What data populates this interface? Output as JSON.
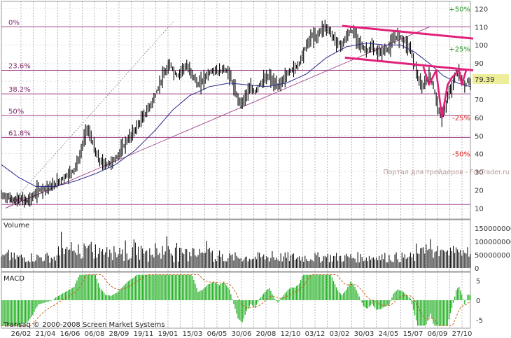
{
  "chart_data": [
    {
      "type": "line",
      "panel": "price",
      "price_axis": {
        "ticks": [
          10,
          20,
          30,
          40,
          50,
          60,
          70,
          80,
          90,
          100,
          110,
          120
        ],
        "ylim": [
          4,
          124
        ]
      },
      "price_axis_labels": [
        "10",
        "20",
        "30",
        "40",
        "50",
        "60",
        "70",
        "80",
        "90",
        "100",
        "110",
        "120"
      ],
      "last_price": 79.39,
      "last_price_label": "79.39",
      "series": [
        {
          "values": [
            [
              0,
              17
            ],
            [
              5,
              16
            ],
            [
              10,
              14
            ],
            [
              14,
              15
            ],
            [
              18,
              14
            ],
            [
              22,
              16
            ],
            [
              26,
              20
            ],
            [
              31,
              21
            ],
            [
              36,
              22
            ],
            [
              41,
              25
            ],
            [
              46,
              28
            ],
            [
              51,
              31
            ],
            [
              55,
              38
            ],
            [
              58,
              48
            ],
            [
              60,
              54
            ],
            [
              63,
              49
            ],
            [
              66,
              41
            ],
            [
              69,
              36
            ],
            [
              73,
              34
            ],
            [
              77,
              35
            ],
            [
              81,
              38
            ],
            [
              85,
              43
            ],
            [
              89,
              48
            ],
            [
              93,
              52
            ],
            [
              97,
              57
            ],
            [
              101,
              62
            ],
            [
              104,
              66
            ],
            [
              107,
              70
            ],
            [
              110,
              76
            ],
            [
              113,
              82
            ],
            [
              116,
              86
            ],
            [
              119,
              89
            ],
            [
              121,
              85
            ],
            [
              124,
              83
            ],
            [
              127,
              87
            ],
            [
              130,
              88
            ],
            [
              134,
              84
            ],
            [
              138,
              78
            ],
            [
              141,
              80
            ],
            [
              145,
              84
            ],
            [
              149,
              86
            ],
            [
              153,
              85
            ],
            [
              156,
              87
            ],
            [
              160,
              84
            ],
            [
              163,
              77
            ],
            [
              166,
              70
            ],
            [
              169,
              68
            ],
            [
              172,
              73
            ],
            [
              175,
              76
            ],
            [
              178,
              74
            ],
            [
              181,
              78
            ],
            [
              185,
              81
            ],
            [
              188,
              83
            ],
            [
              191,
              79
            ],
            [
              194,
              77
            ],
            [
              197,
              80
            ],
            [
              200,
              83
            ],
            [
              203,
              86
            ],
            [
              206,
              87
            ],
            [
              209,
              90
            ],
            [
              212,
              96
            ],
            [
              215,
              101
            ],
            [
              218,
              105
            ],
            [
              221,
              104
            ],
            [
              224,
              108
            ],
            [
              227,
              110
            ],
            [
              230,
              108
            ],
            [
              233,
              104
            ],
            [
              236,
              101
            ],
            [
              239,
              100
            ],
            [
              242,
              104
            ],
            [
              245,
              108
            ],
            [
              248,
              106
            ],
            [
              251,
              102
            ],
            [
              254,
              98
            ],
            [
              257,
              97
            ],
            [
              260,
              99
            ],
            [
              263,
              96
            ],
            [
              266,
              96
            ],
            [
              269,
              97
            ],
            [
              272,
              98
            ],
            [
              275,
              103
            ],
            [
              278,
              105
            ],
            [
              281,
              104
            ],
            [
              284,
              101
            ],
            [
              287,
              98
            ],
            [
              289,
              92
            ],
            [
              291,
              86
            ],
            [
              293,
              80
            ],
            [
              295,
              76
            ],
            [
              298,
              80
            ],
            [
              301,
              83
            ],
            [
              303,
              77
            ],
            [
              305,
              71
            ],
            [
              307,
              64
            ],
            [
              309,
              60
            ],
            [
              311,
              64
            ],
            [
              313,
              70
            ],
            [
              315,
              75
            ],
            [
              317,
              79
            ],
            [
              319,
              84
            ],
            [
              321,
              85
            ],
            [
              323,
              81
            ],
            [
              325,
              76
            ],
            [
              327,
              80
            ],
            [
              329,
              79.39
            ]
          ]
        },
        {
          "values": [
            [
              0,
              34
            ],
            [
              12,
              27
            ],
            [
              24,
              22
            ],
            [
              38,
              22
            ],
            [
              52,
              25
            ],
            [
              66,
              29
            ],
            [
              80,
              34
            ],
            [
              94,
              42
            ],
            [
              108,
              53
            ],
            [
              120,
              64
            ],
            [
              132,
              72
            ],
            [
              146,
              77
            ],
            [
              160,
              79
            ],
            [
              172,
              78
            ],
            [
              186,
              77
            ],
            [
              200,
              79
            ],
            [
              214,
              84
            ],
            [
              228,
              93
            ],
            [
              242,
              99
            ],
            [
              256,
              101
            ],
            [
              268,
              100
            ],
            [
              280,
              100
            ],
            [
              290,
              96
            ],
            [
              300,
              90
            ],
            [
              310,
              83
            ],
            [
              320,
              79
            ],
            [
              329,
              77
            ]
          ]
        }
      ],
      "fibonacci_levels": [
        {
          "label": "0%",
          "value": 110
        },
        {
          "label": "23.6%",
          "value": 86
        },
        {
          "label": "38.2%",
          "value": 73
        },
        {
          "label": "50%",
          "value": 61
        },
        {
          "label": "61.8%",
          "value": 49
        },
        {
          "label": "100%",
          "value": 12
        }
      ],
      "percent_labels": [
        {
          "label": "+50%",
          "value": 120
        },
        {
          "label": "+25%",
          "value": 98
        },
        {
          "label": "-25%",
          "value": 60
        },
        {
          "label": "-50%",
          "value": 40
        }
      ]
    },
    {
      "type": "bar",
      "panel": "volume",
      "title": "Volume",
      "axis_labels": [
        "150000000",
        "100000000",
        "50000000",
        "0"
      ],
      "axis_values": [
        150000000,
        100000000,
        50000000,
        0
      ]
    },
    {
      "type": "bar",
      "panel": "macd",
      "title": "MACD",
      "axis_labels": [
        "5",
        "0",
        "-5"
      ],
      "axis_values": [
        5,
        0,
        -5
      ]
    }
  ],
  "x_axis": {
    "labels": [
      "26/02",
      "21/04",
      "16/06",
      "06/08",
      "28/09",
      "19/11",
      "19/01",
      "15/03",
      "06/05",
      "30/06",
      "20/08",
      "12/10",
      "03/12",
      "03/02",
      "30/03",
      "24/05",
      "15/07",
      "06/09",
      "27/10"
    ]
  },
  "watermark": "Портал для трейдеров - ForTrader.ru",
  "copyright": "Transaq © 2000-2008 Screen Market Systems",
  "colors": {
    "price": "#000000",
    "moving_average": "#2a2a8a",
    "fibonacci": "#a0408a",
    "channel": "#e0207a",
    "macd_hist": "#22b022",
    "macd_signal": "#c05a10",
    "plus_pct": "#2a9a2a",
    "minus_pct": "#e02020",
    "last_price_tag": "#eded9a"
  }
}
